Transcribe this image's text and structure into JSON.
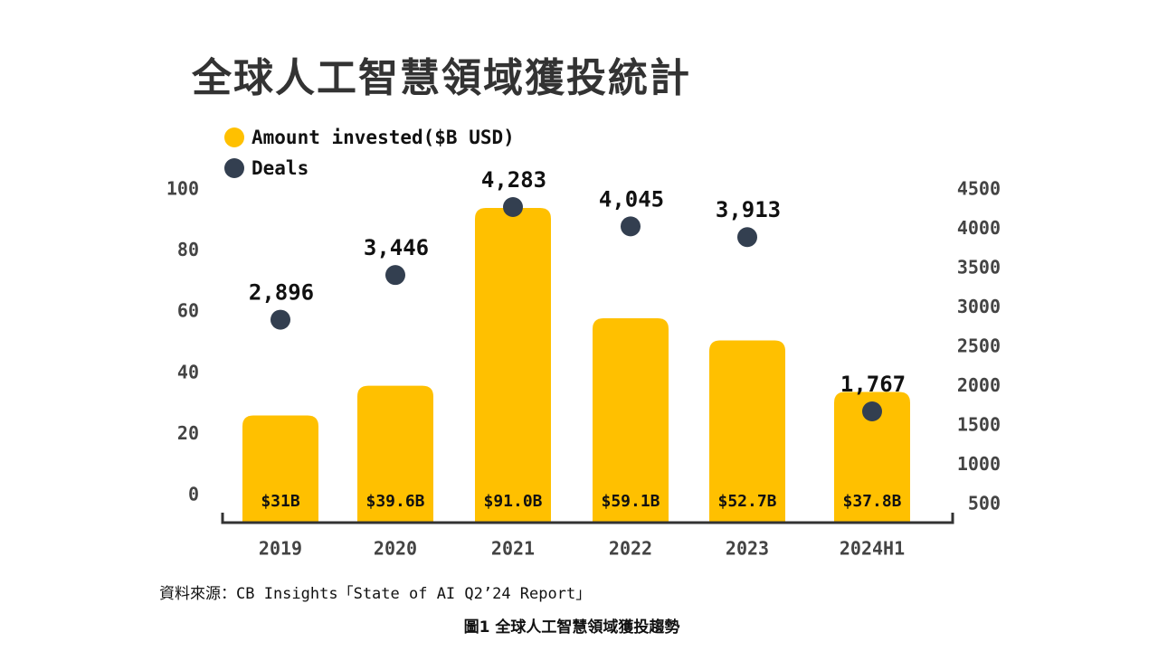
{
  "title": "全球人工智慧領域獲投統計",
  "source": "資料來源：CB Insights「State of AI Q2’24 Report」",
  "caption": "圖1  全球人工智慧領域獲投趨勢",
  "colors": {
    "bar": "#FFC000",
    "dot": "#333F50",
    "axis": "#333333"
  },
  "legend": [
    {
      "label": "Amount invested($B USD)",
      "color": "#FFC000"
    },
    {
      "label": "Deals",
      "color": "#333F50"
    }
  ],
  "chart_data": {
    "type": "bar",
    "categories": [
      "2019",
      "2020",
      "2021",
      "2022",
      "2023",
      "2024H1"
    ],
    "series": [
      {
        "name": "Amount invested($B USD)",
        "type": "bar",
        "axis": "left",
        "values": [
          31,
          39.6,
          91.0,
          59.1,
          52.7,
          37.8
        ],
        "labels": [
          "$31B",
          "$39.6B",
          "$91.0B",
          "$59.1B",
          "$52.7B",
          "$37.8B"
        ]
      },
      {
        "name": "Deals",
        "type": "scatter",
        "axis": "right",
        "values": [
          2896,
          3446,
          4283,
          4045,
          3913,
          1767
        ],
        "labels": [
          "2,896",
          "3,446",
          "4,283",
          "4,045",
          "3,913",
          "1,767"
        ]
      }
    ],
    "left_axis": {
      "ticks": [
        "0",
        "20",
        "40",
        "60",
        "80",
        "100"
      ],
      "range": [
        0,
        100
      ]
    },
    "right_axis": {
      "ticks": [
        "500",
        "1000",
        "1500",
        "2000",
        "2500",
        "3000",
        "3500",
        "4000",
        "4500"
      ],
      "range": [
        500,
        4500
      ]
    },
    "grid": false,
    "legend_position": "top-left"
  }
}
